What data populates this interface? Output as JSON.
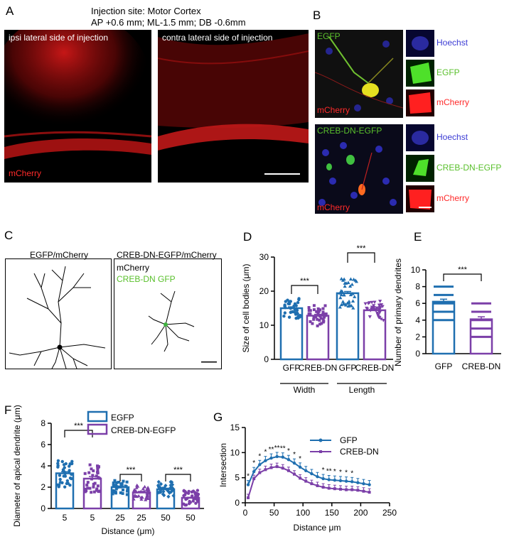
{
  "panel_letters": {
    "a": "A",
    "b": "B",
    "c": "C",
    "d": "D",
    "e": "E",
    "f": "F",
    "g": "G"
  },
  "panel_a": {
    "header_line1": "Injection site: Motor Cortex",
    "header_line2": "AP +0.6 mm; ML-1.5 mm; DB -0.6mm",
    "left_label": "ipsi lateral side of injection",
    "right_label": "contra lateral side of injection",
    "channel_label": "mCherry"
  },
  "panel_b": {
    "top_main_label": "EGFP",
    "top_main_channel": "mCherry",
    "top_small": [
      "Hoechst",
      "EGFP",
      "mCherry"
    ],
    "bottom_main_label": "CREB-DN-EGFP",
    "bottom_main_channel": "mCherry",
    "bottom_small": [
      "Hoechst",
      "CREB-DN-EGFP",
      "mCherry"
    ]
  },
  "panel_c": {
    "left_title": "EGFP/mCherry",
    "right_title": "CREB-DN-EGFP/mCherry",
    "right_line1": "mCherry",
    "right_line2": "CREB-DN GFP"
  },
  "colors": {
    "gfp": "#1f6fb0",
    "creb": "#7b3fa8",
    "red": "#ff2a2a",
    "green": "#5ac02c",
    "blue": "#3b3bd4"
  },
  "chart_data": [
    {
      "panel": "D",
      "type": "bar",
      "ylabel": "Size of cell bodies (μm)",
      "ylim": [
        0,
        30
      ],
      "yticks": [
        0,
        10,
        20,
        30
      ],
      "categories": [
        "GFP",
        "CREB-DN",
        "GFP",
        "CREB-DN"
      ],
      "groups": [
        "Width",
        "Length"
      ],
      "values": [
        15,
        12.8,
        19.4,
        14.4
      ],
      "errors": [
        0.4,
        0.4,
        0.5,
        0.5
      ],
      "significance": [
        "***",
        "***"
      ]
    },
    {
      "panel": "E",
      "type": "bar",
      "ylabel": "Number of primary dendrites",
      "ylim": [
        0,
        10
      ],
      "yticks": [
        0,
        2,
        4,
        6,
        8,
        10
      ],
      "categories": [
        "GFP",
        "CREB-DN"
      ],
      "values": [
        6.2,
        4.1
      ],
      "errors": [
        0.3,
        0.3
      ],
      "significance": [
        "***"
      ]
    },
    {
      "panel": "F",
      "type": "bar",
      "ylabel": "Diameter of apical dendrite (μm)",
      "xlabel": "Distance (μm)",
      "ylim": [
        0,
        8
      ],
      "yticks": [
        0,
        2,
        4,
        6,
        8
      ],
      "categories": [
        "5",
        "5",
        "25",
        "25",
        "50",
        "50"
      ],
      "values": [
        3.3,
        2.8,
        2.0,
        1.5,
        1.8,
        1.0
      ],
      "errors": [
        0.15,
        0.2,
        0.1,
        0.1,
        0.1,
        0.05
      ],
      "legend": [
        "EGFP",
        "CREB-DN-EGFP"
      ],
      "significance": [
        "***",
        "***",
        "***"
      ]
    },
    {
      "panel": "G",
      "type": "line",
      "ylabel": "Intersection",
      "xlabel": "Distance μm",
      "xlim": [
        0,
        250
      ],
      "ylim": [
        0,
        15
      ],
      "xticks": [
        0,
        50,
        100,
        150,
        200,
        250
      ],
      "yticks": [
        0,
        5,
        10,
        15
      ],
      "x": [
        5,
        15,
        25,
        35,
        45,
        55,
        65,
        75,
        85,
        95,
        105,
        115,
        125,
        135,
        145,
        155,
        165,
        175,
        185,
        195,
        205,
        215
      ],
      "series": [
        {
          "name": "GFP",
          "values": [
            3.6,
            6.2,
            7.6,
            8.4,
            8.9,
            9.2,
            9.1,
            8.6,
            7.9,
            7.1,
            6.4,
            5.8,
            5.2,
            4.8,
            4.6,
            4.5,
            4.4,
            4.3,
            4.2,
            4.0,
            3.8,
            3.6
          ]
        },
        {
          "name": "CREB-DN",
          "values": [
            1.0,
            4.8,
            6.0,
            6.6,
            7.0,
            7.2,
            6.9,
            6.4,
            5.7,
            4.9,
            4.3,
            3.8,
            3.4,
            3.1,
            2.9,
            2.8,
            2.7,
            2.6,
            2.6,
            2.5,
            2.3,
            2.1
          ]
        }
      ],
      "significance_marks": [
        {
          "x": 5,
          "text": "*"
        },
        {
          "x": 15,
          "text": "*"
        },
        {
          "x": 25,
          "text": "*"
        },
        {
          "x": 35,
          "text": "*"
        },
        {
          "x": 45,
          "text": "**"
        },
        {
          "x": 55,
          "text": "**"
        },
        {
          "x": 65,
          "text": "**"
        },
        {
          "x": 75,
          "text": "*"
        },
        {
          "x": 85,
          "text": "*"
        },
        {
          "x": 95,
          "text": "*"
        },
        {
          "x": 135,
          "text": "*"
        },
        {
          "x": 145,
          "text": "**"
        },
        {
          "x": 155,
          "text": "*"
        },
        {
          "x": 165,
          "text": "*"
        },
        {
          "x": 175,
          "text": "*"
        },
        {
          "x": 185,
          "text": "*"
        }
      ]
    }
  ]
}
